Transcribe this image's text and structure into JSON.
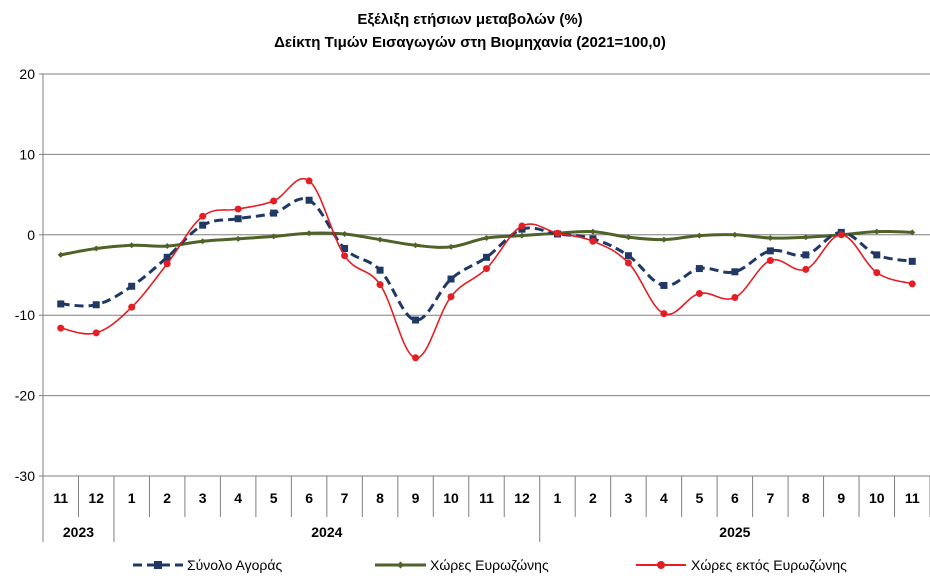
{
  "chart_data": {
    "type": "line",
    "title": "Εξέλιξη ετήσιων μεταβολών (%)",
    "subtitle": "Δείκτη Τιμών Εισαγωγών στη Βιομηχανία (2021=100,0)",
    "xlabel": "",
    "ylabel": "",
    "ylim": [
      -30,
      20
    ],
    "yticks": [
      20,
      10,
      0,
      -10,
      -20,
      -30
    ],
    "grid": true,
    "legend_position": "bottom",
    "categories": [
      "11",
      "12",
      "1",
      "2",
      "3",
      "4",
      "5",
      "6",
      "7",
      "8",
      "9",
      "10",
      "11",
      "12",
      "1",
      "2",
      "3",
      "4",
      "5",
      "6",
      "7",
      "8",
      "9",
      "10",
      "11"
    ],
    "years": [
      {
        "label": "2023",
        "start": 0,
        "end": 1
      },
      {
        "label": "2024",
        "start": 2,
        "end": 13
      },
      {
        "label": "2025",
        "start": 14,
        "end": 24
      }
    ],
    "series": [
      {
        "name": "Σύνολο Αγοράς",
        "color": "#1f3864",
        "style": "dashed",
        "marker": "square",
        "values": [
          -8.6,
          -8.7,
          -6.4,
          -2.8,
          1.2,
          2.0,
          2.7,
          4.3,
          -1.7,
          -4.4,
          -10.6,
          -5.5,
          -2.8,
          0.7,
          0.1,
          -0.5,
          -2.6,
          -6.3,
          -4.2,
          -4.6,
          -2.0,
          -2.5,
          0.3,
          -2.5,
          -3.3
        ]
      },
      {
        "name": "Χώρες Ευρωζώνης",
        "color": "#4f6228",
        "style": "solid",
        "marker": "diamond",
        "values": [
          -2.5,
          -1.7,
          -1.3,
          -1.4,
          -0.8,
          -0.5,
          -0.2,
          0.2,
          0.1,
          -0.6,
          -1.3,
          -1.5,
          -0.4,
          -0.1,
          0.2,
          0.4,
          -0.3,
          -0.6,
          -0.1,
          0.0,
          -0.4,
          -0.3,
          0.0,
          0.4,
          0.3
        ]
      },
      {
        "name": "Χώρες εκτός Ευρωζώνης",
        "color": "#e31e24",
        "style": "solid",
        "marker": "circle",
        "values": [
          -11.6,
          -12.2,
          -9.0,
          -3.6,
          2.3,
          3.2,
          4.2,
          6.7,
          -2.6,
          -6.2,
          -15.3,
          -7.7,
          -4.2,
          1.1,
          0.2,
          -0.8,
          -3.5,
          -9.8,
          -7.3,
          -7.8,
          -3.2,
          -4.3,
          0.0,
          -4.7,
          -6.1
        ]
      }
    ]
  }
}
